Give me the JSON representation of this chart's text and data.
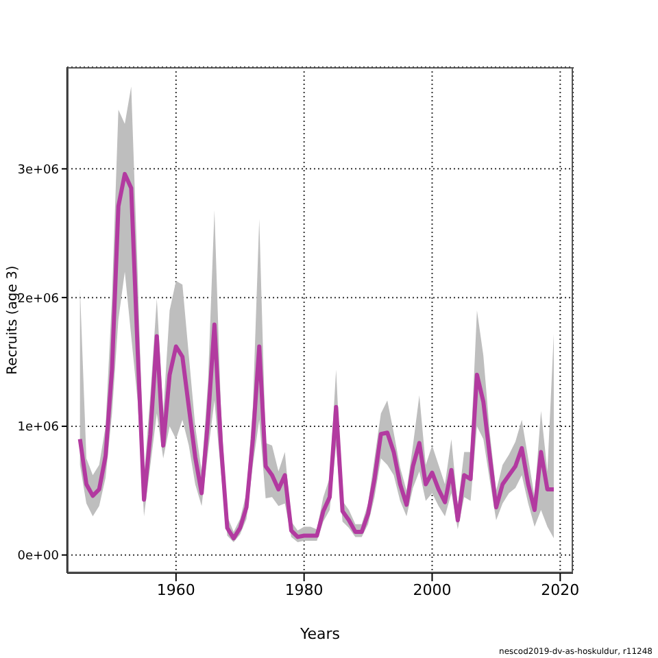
{
  "chart_data": {
    "type": "line",
    "xlabel": "Years",
    "ylabel": "Recruits (age 3)",
    "annotations": [
      "nescod2019-dv-as-hoskuldur, r11248"
    ],
    "x": [
      1945,
      1946,
      1947,
      1948,
      1949,
      1950,
      1951,
      1952,
      1953,
      1954,
      1955,
      1956,
      1957,
      1958,
      1959,
      1960,
      1961,
      1962,
      1963,
      1964,
      1965,
      1966,
      1967,
      1968,
      1969,
      1970,
      1971,
      1972,
      1973,
      1974,
      1975,
      1976,
      1977,
      1978,
      1979,
      1980,
      1981,
      1982,
      1983,
      1984,
      1985,
      1986,
      1987,
      1988,
      1989,
      1990,
      1991,
      1992,
      1993,
      1994,
      1995,
      1996,
      1997,
      1998,
      1999,
      2000,
      2001,
      2002,
      2003,
      2004,
      2005,
      2006,
      2007,
      2008,
      2009,
      2010,
      2011,
      2012,
      2013,
      2014,
      2015,
      2016,
      2017,
      2018,
      2019
    ],
    "series": [
      {
        "color": "#b23aa0",
        "values": [
          900000,
          550000,
          460000,
          510000,
          770000,
          1440000,
          2710000,
          2960000,
          2850000,
          1600000,
          430000,
          940000,
          1700000,
          850000,
          1400000,
          1620000,
          1540000,
          1150000,
          760000,
          480000,
          1050000,
          1790000,
          870000,
          210000,
          130000,
          210000,
          370000,
          900000,
          1620000,
          690000,
          620000,
          510000,
          620000,
          190000,
          140000,
          150000,
          150000,
          150000,
          340000,
          450000,
          1150000,
          340000,
          270000,
          180000,
          180000,
          320000,
          590000,
          940000,
          950000,
          800000,
          550000,
          390000,
          690000,
          870000,
          550000,
          640000,
          510000,
          410000,
          660000,
          270000,
          620000,
          590000,
          1400000,
          1190000,
          770000,
          370000,
          550000,
          620000,
          690000,
          830000,
          550000,
          350000,
          800000,
          510000,
          510000
        ],
        "upper": [
          2070000,
          750000,
          620000,
          700000,
          1000000,
          2000000,
          3460000,
          3350000,
          3640000,
          2200000,
          600000,
          1250000,
          1990000,
          1100000,
          1900000,
          2130000,
          2100000,
          1550000,
          1000000,
          650000,
          1350000,
          2680000,
          1150000,
          300000,
          180000,
          280000,
          480000,
          1150000,
          2610000,
          870000,
          850000,
          650000,
          800000,
          260000,
          190000,
          220000,
          220000,
          200000,
          450000,
          600000,
          1440000,
          420000,
          350000,
          240000,
          240000,
          400000,
          750000,
          1100000,
          1200000,
          950000,
          680000,
          500000,
          850000,
          1240000,
          700000,
          850000,
          700000,
          550000,
          900000,
          380000,
          800000,
          800000,
          1900000,
          1550000,
          950000,
          500000,
          700000,
          780000,
          880000,
          1050000,
          750000,
          450000,
          1120000,
          650000,
          1720000
        ],
        "lower": [
          700000,
          400000,
          300000,
          380000,
          600000,
          1100000,
          1830000,
          2200000,
          1700000,
          1200000,
          300000,
          700000,
          1100000,
          750000,
          1000000,
          900000,
          1050000,
          850000,
          550000,
          380000,
          800000,
          1200000,
          650000,
          150000,
          100000,
          160000,
          280000,
          700000,
          1050000,
          440000,
          450000,
          380000,
          400000,
          140000,
          100000,
          110000,
          110000,
          110000,
          260000,
          350000,
          850000,
          260000,
          210000,
          140000,
          140000,
          240000,
          450000,
          750000,
          700000,
          620000,
          420000,
          300000,
          520000,
          650000,
          420000,
          480000,
          380000,
          300000,
          480000,
          200000,
          450000,
          420000,
          1000000,
          900000,
          580000,
          270000,
          400000,
          480000,
          520000,
          620000,
          400000,
          220000,
          350000,
          220000,
          130000
        ]
      }
    ],
    "xlim": [
      1943,
      2022
    ],
    "xticks": [
      1960,
      1980,
      2000,
      2020
    ],
    "ylim": [
      -140000,
      3790000
    ],
    "yticks": [
      {
        "value": 0,
        "label": "0e+00"
      },
      {
        "value": 1000000,
        "label": "1e+06"
      },
      {
        "value": 2000000,
        "label": "2e+06"
      },
      {
        "value": 3000000,
        "label": "3e+06"
      }
    ],
    "grid": true,
    "marker": "none",
    "line_style": "solid"
  }
}
